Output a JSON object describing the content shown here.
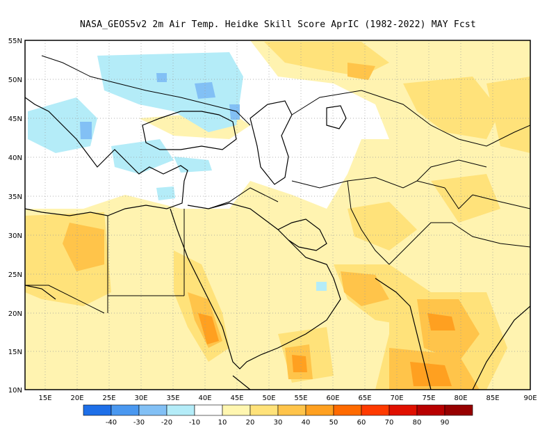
{
  "title": "NASA_GEOS5v2  2m Air Temp. Heidke Skill Score AprIC (1982-2022) MAY Fcst",
  "lon_labels": [
    "15E",
    "20E",
    "25E",
    "30E",
    "35E",
    "40E",
    "45E",
    "50E",
    "55E",
    "60E",
    "65E",
    "70E",
    "75E",
    "80E",
    "85E",
    "90E"
  ],
  "lat_labels": [
    "55N",
    "50N",
    "45N",
    "40N",
    "35N",
    "30N",
    "25N",
    "20N",
    "15N",
    "10N"
  ],
  "colorbar": {
    "colors": [
      "#1e6fe8",
      "#4a98f0",
      "#82c0f5",
      "#b4ecf8",
      "#ffffff",
      "#fff6b0",
      "#ffe27a",
      "#ffc44a",
      "#ffa020",
      "#ff6a00",
      "#ff3a00",
      "#e01000",
      "#b80000",
      "#960000"
    ],
    "labels": [
      "-40",
      "-30",
      "-20",
      "-10",
      "10",
      "20",
      "30",
      "40",
      "50",
      "60",
      "70",
      "80",
      "90"
    ]
  }
}
